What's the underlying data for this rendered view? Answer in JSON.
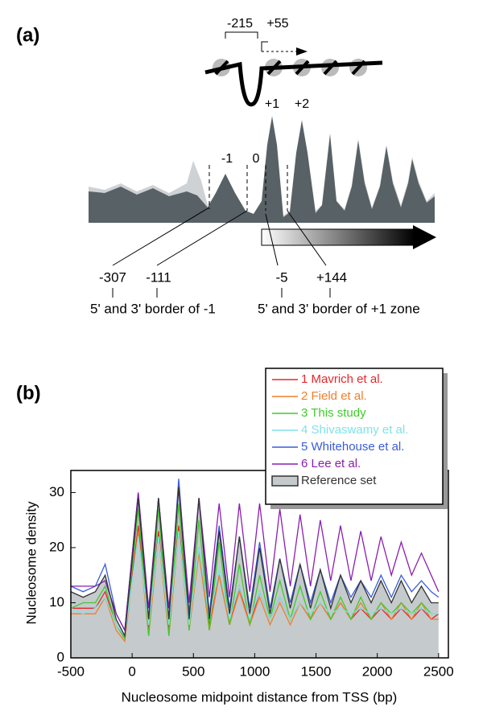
{
  "panel_a": {
    "label": "(a)",
    "bracket": "-215",
    "start": "+55",
    "nucleosomes": [
      "-1",
      "0",
      "+1",
      "+2"
    ],
    "borders": [
      "-307",
      "-111",
      "-5",
      "+144"
    ],
    "border_captions": [
      "5' and 3' border of -1",
      "5' and 3' border of +1 zone"
    ]
  },
  "chart_data": {
    "type": "line",
    "panel_label": "(b)",
    "x_label": "Nucleosome midpoint distance from TSS (bp)",
    "y_label": "Nucleosome density",
    "xlim": [
      -500,
      2580
    ],
    "ylim": [
      0,
      34
    ],
    "xticks": [
      -500,
      0,
      500,
      1000,
      1500,
      2000,
      2500
    ],
    "yticks": [
      0,
      10,
      20,
      30
    ],
    "legend": "upper right",
    "x": [
      -500,
      -400,
      -300,
      -220,
      -130,
      -60,
      50,
      135,
      215,
      300,
      380,
      465,
      545,
      630,
      710,
      795,
      875,
      960,
      1040,
      1125,
      1205,
      1290,
      1370,
      1455,
      1535,
      1620,
      1700,
      1785,
      1865,
      1950,
      2030,
      2115,
      2195,
      2280,
      2360,
      2440,
      2500
    ],
    "series": [
      {
        "name": "1 Mavrich et al.",
        "color": "#e8262a",
        "values": [
          9,
          9,
          9,
          12,
          6,
          3.5,
          24,
          5,
          23,
          5,
          24,
          6,
          20,
          6,
          15,
          6,
          13,
          6,
          12,
          7,
          11,
          7,
          10,
          7,
          10,
          7,
          10,
          7,
          9,
          7,
          9,
          7,
          9,
          7,
          9,
          7,
          8
        ]
      },
      {
        "name": "2 Field et al.",
        "color": "#f07f2a",
        "values": [
          8,
          8,
          8,
          11,
          5,
          3,
          23,
          4,
          22,
          4,
          23,
          5,
          19,
          5,
          15,
          6,
          12,
          6,
          11,
          6,
          10,
          6,
          10,
          7,
          10,
          7,
          10,
          7,
          10,
          7,
          10,
          7,
          10,
          7,
          10,
          7,
          7
        ]
      },
      {
        "name": "3 This study",
        "color": "#3dcc2a",
        "values": [
          9,
          10,
          10,
          13,
          6,
          3.5,
          27,
          4,
          27,
          4,
          28,
          5,
          25,
          5,
          21,
          6,
          17,
          6,
          15,
          7,
          14,
          7,
          13,
          7,
          12,
          7,
          11,
          7,
          11,
          7,
          10,
          8,
          10,
          8,
          10,
          8,
          8
        ]
      },
      {
        "name": "4 Shivaswamy et al.",
        "color": "#7fe3e8",
        "values": [
          9,
          8,
          9,
          11,
          6,
          4,
          22,
          6,
          22,
          6,
          23,
          6,
          20,
          7,
          16,
          7,
          13,
          7,
          12,
          7,
          11,
          7,
          10,
          8,
          10,
          8,
          9,
          8,
          9,
          8,
          9,
          8,
          9,
          8,
          9,
          8,
          8
        ]
      },
      {
        "name": "5 Whitehouse et al.",
        "color": "#3a5bd8",
        "values": [
          13,
          12,
          13,
          17,
          8,
          5,
          30,
          7,
          29,
          7,
          32.5,
          8,
          29,
          8,
          24,
          9,
          22,
          9,
          21,
          9,
          18,
          10,
          17,
          10,
          16,
          10,
          15,
          11,
          14,
          11,
          15,
          11,
          15,
          12,
          14,
          12,
          11
        ]
      },
      {
        "name": "6 Lee et al.",
        "color": "#8a1eb0",
        "values": [
          13,
          13,
          13,
          14,
          8,
          5,
          30,
          9,
          29,
          9,
          31,
          10,
          29,
          11,
          28,
          11,
          28,
          12,
          28,
          12,
          27,
          13,
          26,
          13,
          25,
          14,
          24,
          14,
          23,
          14,
          22,
          15,
          21,
          15,
          19,
          15,
          12
        ]
      },
      {
        "name": "Reference set",
        "color": "#333333",
        "fill": "#c5cacd",
        "values": [
          12,
          11,
          12,
          15,
          7,
          4,
          29,
          7,
          29,
          7,
          31,
          7,
          29,
          7,
          23,
          8,
          22,
          8,
          20,
          8,
          18,
          9,
          17,
          9,
          16,
          9,
          15,
          10,
          14,
          10,
          14,
          10,
          14,
          10,
          13,
          10,
          10
        ]
      }
    ]
  }
}
